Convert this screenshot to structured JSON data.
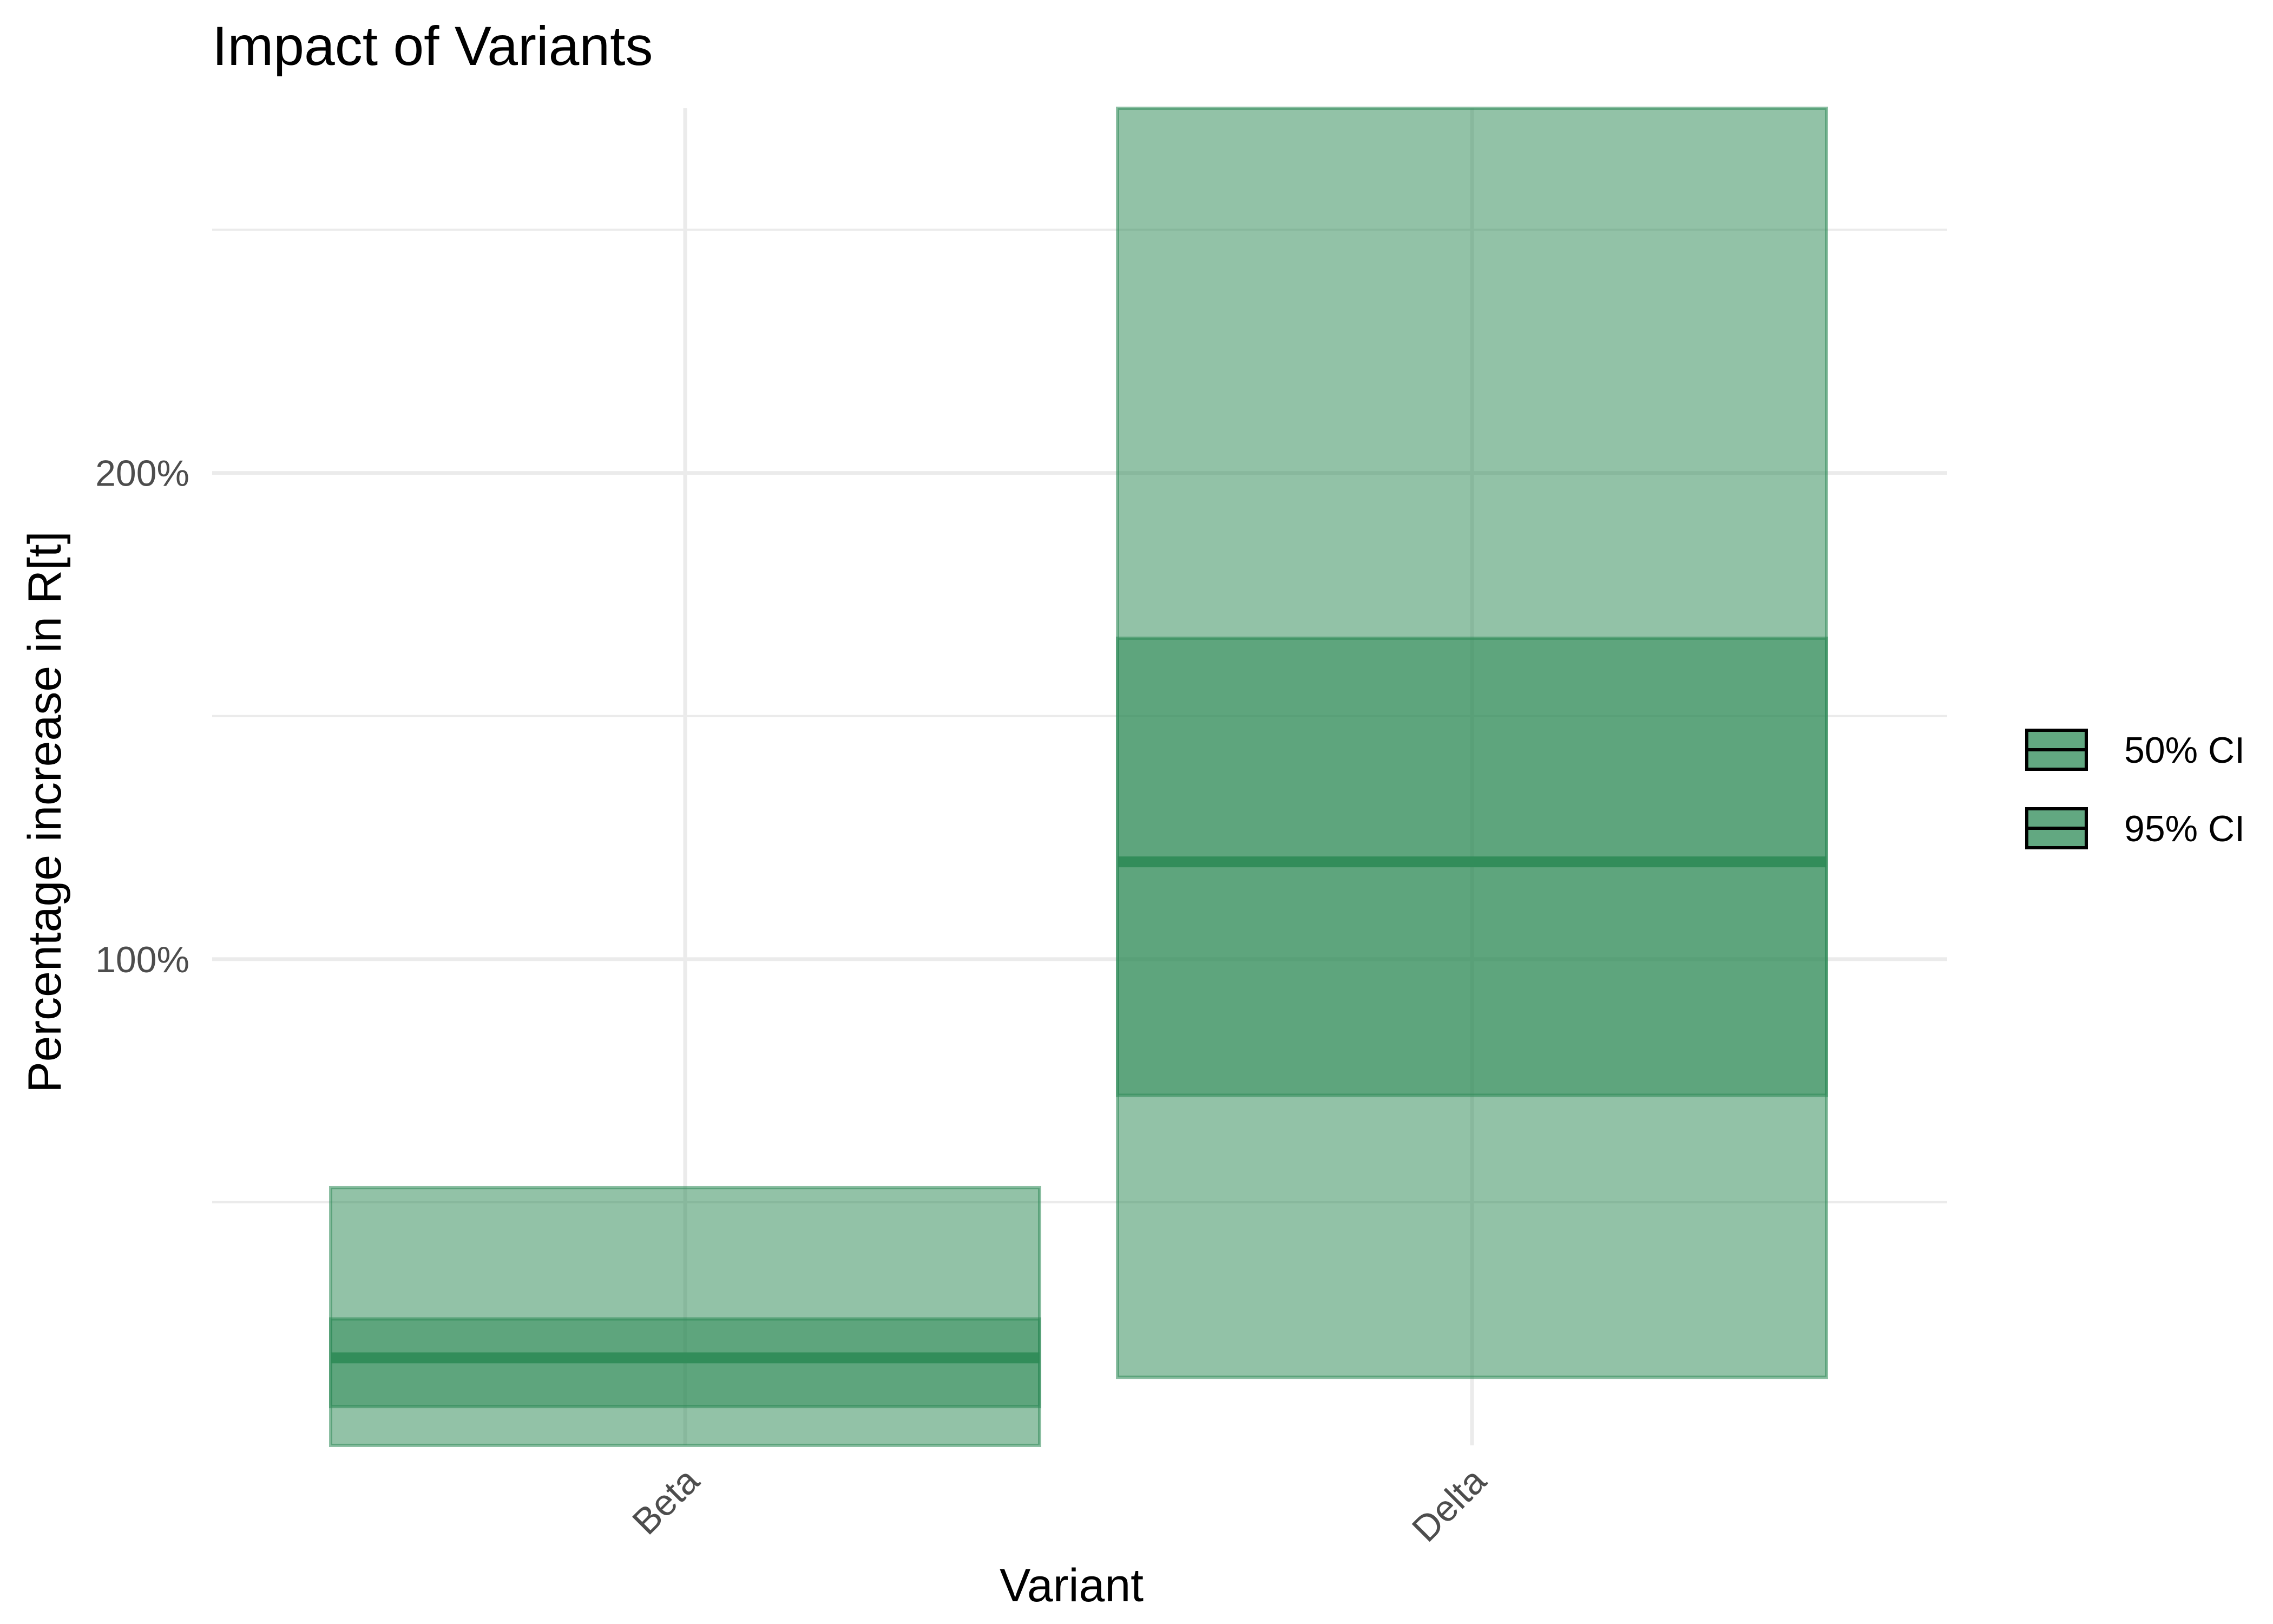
{
  "chart_data": {
    "type": "bar",
    "title": "Impact of Variants",
    "xlabel": "Variant",
    "ylabel": "Percentage increase in R[t]",
    "categories": [
      "Beta",
      "Delta"
    ],
    "y_ticks": [
      {
        "value": 100,
        "label": "100%"
      },
      {
        "value": 200,
        "label": "200%"
      }
    ],
    "ylim": [
      0,
      275
    ],
    "grid": true,
    "legend_position": "right",
    "colors": {
      "fill": "#2e8b57",
      "median_line": "#2e8b57",
      "grid": "#ebebeb",
      "legend_border": "#000000"
    },
    "series": [
      {
        "name": "95% CI",
        "lower": [
          0,
          14
        ],
        "upper": [
          53,
          275
        ]
      },
      {
        "name": "50% CI",
        "lower": [
          8,
          72
        ],
        "upper": [
          26,
          166
        ]
      }
    ],
    "median": [
      18,
      120
    ],
    "legend": [
      {
        "label": "50% CI"
      },
      {
        "label": "95% CI"
      }
    ]
  }
}
